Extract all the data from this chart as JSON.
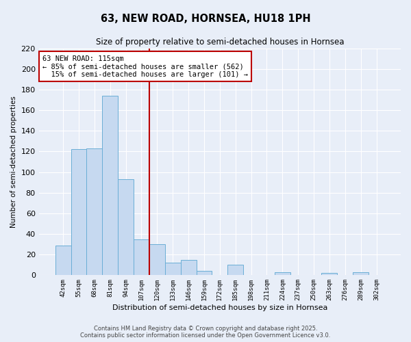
{
  "title": "63, NEW ROAD, HORNSEA, HU18 1PH",
  "subtitle": "Size of property relative to semi-detached houses in Hornsea",
  "xlabel": "Distribution of semi-detached houses by size in Hornsea",
  "ylabel": "Number of semi-detached properties",
  "bar_labels": [
    "42sqm",
    "55sqm",
    "68sqm",
    "81sqm",
    "94sqm",
    "107sqm",
    "120sqm",
    "133sqm",
    "146sqm",
    "159sqm",
    "172sqm",
    "185sqm",
    "198sqm",
    "211sqm",
    "224sqm",
    "237sqm",
    "250sqm",
    "263sqm",
    "276sqm",
    "289sqm",
    "302sqm"
  ],
  "bar_values": [
    29,
    122,
    123,
    174,
    93,
    35,
    30,
    12,
    15,
    4,
    0,
    10,
    0,
    0,
    3,
    0,
    0,
    2,
    0,
    3,
    0
  ],
  "bar_color": "#c6d9f0",
  "bar_edge_color": "#6aaed6",
  "vline_x_index": 6,
  "vline_color": "#bb0000",
  "annotation_title": "63 NEW ROAD: 115sqm",
  "annotation_line2": "← 85% of semi-detached houses are smaller (562)",
  "annotation_line3": "  15% of semi-detached houses are larger (101) →",
  "annotation_box_color": "#ffffff",
  "annotation_box_edge": "#bb0000",
  "ylim": [
    0,
    220
  ],
  "yticks": [
    0,
    20,
    40,
    60,
    80,
    100,
    120,
    140,
    160,
    180,
    200,
    220
  ],
  "footer_line1": "Contains HM Land Registry data © Crown copyright and database right 2025.",
  "footer_line2": "Contains public sector information licensed under the Open Government Licence v3.0.",
  "bg_color": "#e8eef8",
  "grid_color": "#ffffff"
}
